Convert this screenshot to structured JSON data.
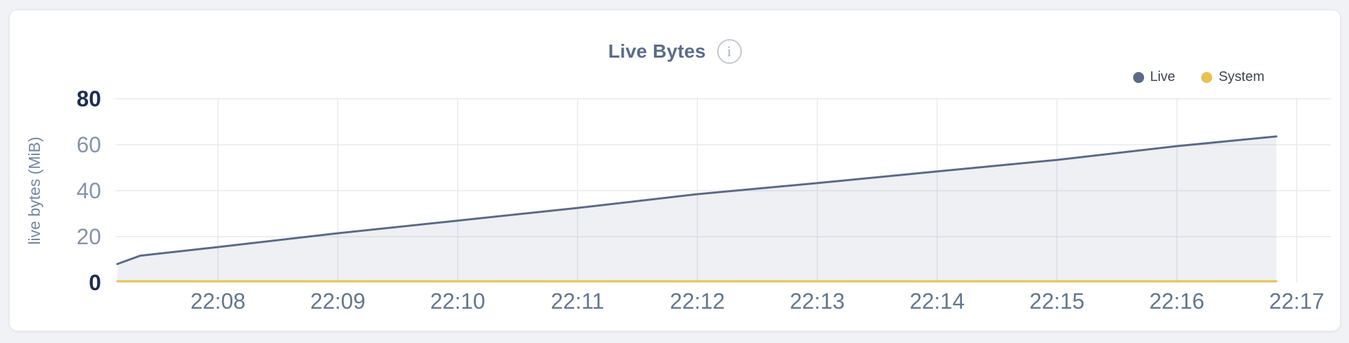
{
  "card": {
    "title": "Live Bytes"
  },
  "header": {
    "info_icon_glyph": "i"
  },
  "legend": {
    "position": "top-right",
    "items": [
      {
        "label": "Live",
        "color": "#5b6988"
      },
      {
        "label": "System",
        "color": "#eac14e"
      }
    ]
  },
  "chart_data": {
    "type": "area",
    "title": "Live Bytes",
    "xlabel": "",
    "ylabel": "live bytes (MiB)",
    "ylim": [
      0,
      80
    ],
    "y_ticks": [
      0,
      20,
      40,
      60,
      80
    ],
    "x_unit": "minutes after 22:00",
    "x_ticks": [
      {
        "minute": 8,
        "label": "22:08"
      },
      {
        "minute": 9,
        "label": "22:09"
      },
      {
        "minute": 10,
        "label": "22:10"
      },
      {
        "minute": 11,
        "label": "22:11"
      },
      {
        "minute": 12,
        "label": "22:12"
      },
      {
        "minute": 13,
        "label": "22:13"
      },
      {
        "minute": 14,
        "label": "22:14"
      },
      {
        "minute": 15,
        "label": "22:15"
      },
      {
        "minute": 16,
        "label": "22:16"
      },
      {
        "minute": 17,
        "label": "22:17"
      }
    ],
    "grid": true,
    "legend_position": "top-right",
    "series": [
      {
        "name": "Live",
        "color": "#5b6988",
        "style": "area",
        "fill_opacity": 0.1,
        "points": [
          [
            7.16,
            8.1
          ],
          [
            7.35,
            11.7
          ],
          [
            8.0,
            15.5
          ],
          [
            9.0,
            21.5
          ],
          [
            10.0,
            27.0
          ],
          [
            11.0,
            32.5
          ],
          [
            12.0,
            38.5
          ],
          [
            13.0,
            43.3
          ],
          [
            14.0,
            48.4
          ],
          [
            15.0,
            53.4
          ],
          [
            16.0,
            59.4
          ],
          [
            16.83,
            63.6
          ]
        ]
      },
      {
        "name": "System",
        "color": "#e9c150",
        "style": "line",
        "points": [
          [
            7.16,
            0.6
          ],
          [
            16.83,
            0.6
          ]
        ]
      }
    ]
  }
}
